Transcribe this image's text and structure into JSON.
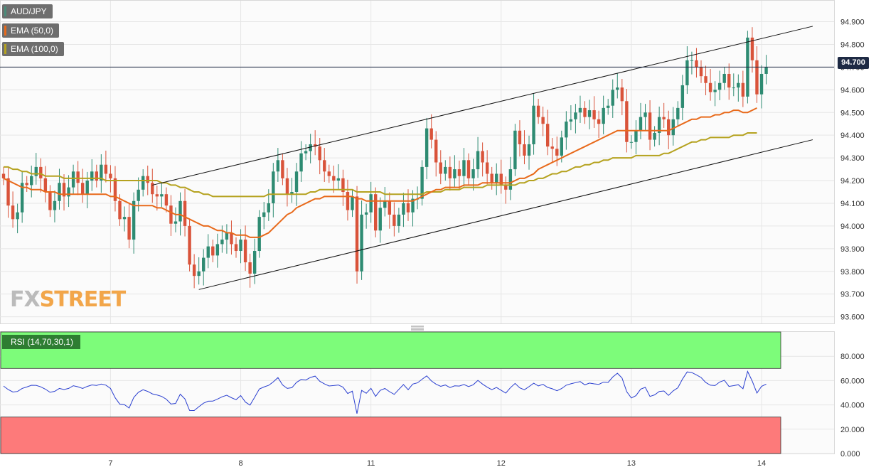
{
  "chart_data": [
    {
      "type": "candlestick",
      "legend": [
        {
          "label": "AUD/JPY",
          "color": "#4a8c7a"
        },
        {
          "label": "EMA (50,0)",
          "color": "#e8691a"
        },
        {
          "label": "EMA (100,0)",
          "color": "#b5a21f"
        }
      ],
      "ylim": [
        93.58,
        94.98
      ],
      "y_ticks": [
        "94.900",
        "94.800",
        "94.700",
        "94.600",
        "94.500",
        "94.400",
        "94.300",
        "94.200",
        "94.100",
        "94.000",
        "93.900",
        "93.800",
        "93.700",
        "93.600"
      ],
      "y_tick_values": [
        94.9,
        94.8,
        94.7,
        94.6,
        94.5,
        94.4,
        94.3,
        94.2,
        94.1,
        94.0,
        93.9,
        93.8,
        93.7,
        93.6
      ],
      "last_price": "94.700",
      "last_price_value": 94.7,
      "x_ticks": [
        "7",
        "8",
        "11",
        "12",
        "13",
        "14"
      ],
      "x_tick_index": [
        23,
        51,
        79,
        107,
        135,
        163
      ],
      "colors": {
        "up": "#2e8b72",
        "down": "#d9533a",
        "ema50": "#e8691a",
        "ema100": "#b5a21f",
        "grid": "#e6e6e6",
        "price_line": "#1e2a44"
      },
      "closes": [
        94.21,
        94.09,
        94.03,
        94.06,
        94.19,
        94.18,
        94.22,
        94.26,
        94.21,
        94.15,
        94.07,
        94.11,
        94.19,
        94.13,
        94.17,
        94.24,
        94.19,
        94.14,
        94.2,
        94.24,
        94.2,
        94.27,
        94.23,
        94.21,
        94.11,
        94.03,
        94.04,
        93.94,
        94.11,
        94.16,
        94.22,
        94.19,
        94.14,
        94.13,
        94.14,
        94.09,
        94.01,
        94.02,
        94.11,
        94.0,
        93.83,
        93.78,
        93.8,
        93.86,
        93.91,
        93.87,
        93.92,
        93.94,
        93.97,
        93.92,
        93.89,
        93.94,
        93.84,
        93.79,
        93.89,
        94.04,
        94.06,
        94.1,
        94.24,
        94.29,
        94.21,
        94.14,
        94.15,
        94.24,
        94.32,
        94.33,
        94.36,
        94.35,
        94.29,
        94.24,
        94.22,
        94.2,
        94.21,
        94.15,
        94.07,
        94.13,
        93.8,
        94.05,
        94.06,
        94.14,
        93.98,
        94.08,
        94.11,
        94.05,
        94.0,
        94.05,
        94.1,
        94.06,
        94.12,
        94.12,
        94.26,
        94.43,
        94.38,
        94.28,
        94.23,
        94.26,
        94.21,
        94.25,
        94.22,
        94.29,
        94.21,
        94.25,
        94.33,
        94.28,
        94.23,
        94.19,
        94.23,
        94.18,
        94.16,
        94.25,
        94.42,
        94.36,
        94.31,
        94.36,
        94.53,
        94.48,
        94.45,
        94.35,
        94.34,
        94.31,
        94.39,
        94.46,
        94.47,
        94.5,
        94.52,
        94.48,
        94.51,
        94.47,
        94.45,
        94.52,
        94.53,
        94.6,
        94.61,
        94.55,
        94.37,
        94.37,
        94.42,
        94.48,
        94.5,
        94.38,
        94.41,
        94.48,
        94.47,
        94.4,
        94.47,
        94.52,
        94.62,
        94.73,
        94.73,
        94.7,
        94.66,
        94.63,
        94.59,
        94.6,
        94.63,
        94.67,
        94.61,
        94.61,
        94.63,
        94.57,
        94.83,
        94.73,
        94.58,
        94.67,
        94.7
      ],
      "ema50": [
        94.21,
        94.2,
        94.19,
        94.18,
        94.17,
        94.17,
        94.16,
        94.16,
        94.16,
        94.15,
        94.15,
        94.15,
        94.14,
        94.14,
        94.14,
        94.14,
        94.14,
        94.14,
        94.14,
        94.14,
        94.14,
        94.14,
        94.14,
        94.13,
        94.13,
        94.12,
        94.11,
        94.1,
        94.09,
        94.09,
        94.09,
        94.09,
        94.09,
        94.08,
        94.08,
        94.07,
        94.06,
        94.05,
        94.05,
        94.04,
        94.03,
        94.02,
        94.01,
        94.0,
        94.0,
        93.99,
        93.98,
        93.98,
        93.97,
        93.97,
        93.96,
        93.96,
        93.96,
        93.95,
        93.95,
        93.95,
        93.96,
        93.97,
        93.99,
        94.01,
        94.03,
        94.05,
        94.06,
        94.08,
        94.09,
        94.1,
        94.11,
        94.12,
        94.12,
        94.13,
        94.13,
        94.13,
        94.13,
        94.13,
        94.13,
        94.13,
        94.12,
        94.12,
        94.11,
        94.11,
        94.11,
        94.11,
        94.11,
        94.11,
        94.11,
        94.11,
        94.11,
        94.11,
        94.11,
        94.12,
        94.13,
        94.14,
        94.15,
        94.16,
        94.16,
        94.17,
        94.17,
        94.17,
        94.17,
        94.18,
        94.18,
        94.18,
        94.18,
        94.19,
        94.19,
        94.19,
        94.19,
        94.19,
        94.19,
        94.19,
        94.2,
        94.21,
        94.21,
        94.22,
        94.23,
        94.25,
        94.26,
        94.27,
        94.28,
        94.29,
        94.3,
        94.31,
        94.32,
        94.33,
        94.34,
        94.35,
        94.36,
        94.37,
        94.38,
        94.39,
        94.4,
        94.41,
        94.42,
        94.42,
        94.42,
        94.42,
        94.42,
        94.42,
        94.42,
        94.42,
        94.42,
        94.42,
        94.42,
        94.42,
        94.43,
        94.44,
        94.45,
        94.46,
        94.47,
        94.47,
        94.48,
        94.48,
        94.48,
        94.49,
        94.49,
        94.5,
        94.5,
        94.51,
        94.51,
        94.5,
        94.5,
        94.51,
        94.52
      ],
      "ema100": [
        94.26,
        94.26,
        94.25,
        94.25,
        94.24,
        94.24,
        94.23,
        94.23,
        94.23,
        94.22,
        94.22,
        94.22,
        94.22,
        94.21,
        94.21,
        94.21,
        94.21,
        94.21,
        94.21,
        94.21,
        94.21,
        94.21,
        94.2,
        94.2,
        94.2,
        94.2,
        94.2,
        94.2,
        94.2,
        94.2,
        94.2,
        94.2,
        94.2,
        94.2,
        94.19,
        94.19,
        94.18,
        94.18,
        94.17,
        94.17,
        94.16,
        94.15,
        94.15,
        94.14,
        94.14,
        94.13,
        94.13,
        94.13,
        94.13,
        94.13,
        94.13,
        94.13,
        94.13,
        94.13,
        94.13,
        94.13,
        94.13,
        94.14,
        94.14,
        94.14,
        94.14,
        94.14,
        94.14,
        94.14,
        94.14,
        94.14,
        94.15,
        94.15,
        94.16,
        94.16,
        94.16,
        94.16,
        94.16,
        94.16,
        94.16,
        94.16,
        94.15,
        94.15,
        94.15,
        94.15,
        94.15,
        94.15,
        94.14,
        94.14,
        94.14,
        94.14,
        94.14,
        94.14,
        94.14,
        94.14,
        94.14,
        94.15,
        94.15,
        94.15,
        94.15,
        94.16,
        94.16,
        94.16,
        94.16,
        94.17,
        94.17,
        94.17,
        94.17,
        94.17,
        94.18,
        94.18,
        94.18,
        94.18,
        94.18,
        94.18,
        94.18,
        94.19,
        94.19,
        94.2,
        94.2,
        94.21,
        94.21,
        94.22,
        94.23,
        94.23,
        94.24,
        94.24,
        94.25,
        94.26,
        94.26,
        94.27,
        94.27,
        94.28,
        94.28,
        94.29,
        94.29,
        94.3,
        94.3,
        94.3,
        94.3,
        94.3,
        94.31,
        94.31,
        94.31,
        94.31,
        94.31,
        94.31,
        94.32,
        94.32,
        94.33,
        94.34,
        94.35,
        94.36,
        94.37,
        94.37,
        94.38,
        94.38,
        94.39,
        94.39,
        94.39,
        94.39,
        94.39,
        94.4,
        94.4,
        94.4,
        94.41,
        94.41,
        94.41
      ],
      "channel": {
        "upper": [
          [
            32,
            94.18
          ],
          [
            174,
            94.88
          ]
        ],
        "lower": [
          [
            42,
            93.72
          ],
          [
            174,
            94.38
          ]
        ]
      }
    },
    {
      "type": "line",
      "legend": [
        {
          "label": "RSI (14,70,30,1)",
          "color": "#2a3fd0"
        }
      ],
      "ylim": [
        0,
        100
      ],
      "y_ticks": [
        "80.000",
        "60.000",
        "40.000",
        "20.000",
        "0.000"
      ],
      "y_tick_values": [
        80,
        60,
        40,
        20,
        0
      ],
      "overbought": 70,
      "oversold": 30,
      "colors": {
        "line": "#2a3fd0",
        "overbought_zone": "#7dfc7a",
        "oversold_zone": "#fd7a7a"
      },
      "values": [
        55.52,
        52.64,
        50.59,
        51.07,
        53.55,
        54.72,
        56.13,
        56.1,
        54.88,
        52.91,
        50.37,
        51.16,
        53.56,
        52.64,
        53.58,
        55.77,
        54.93,
        53.48,
        55.19,
        56.41,
        56.01,
        57.16,
        56.27,
        53.49,
        45.84,
        40.6,
        40.23,
        37.45,
        46.09,
        50.43,
        52.48,
        51.09,
        49.04,
        48.18,
        46.96,
        44.65,
        40.7,
        41.22,
        48.84,
        44.86,
        35.42,
        35.38,
        38.53,
        41.43,
        43.06,
        43.1,
        44.81,
        46.65,
        47.98,
        45.89,
        44.24,
        47.67,
        42.31,
        39.81,
        46.32,
        53.02,
        54.76,
        56.06,
        58.91,
        62.43,
        56.41,
        53.54,
        54.16,
        58.55,
        60.95,
        60.48,
        62.56,
        63.69,
        59.48,
        57.25,
        55.53,
        55.88,
        56.37,
        54.56,
        49.38,
        51.28,
        32.78,
        51.93,
        49.61,
        53.65,
        47.03,
        51.95,
        53.49,
        50.87,
        48.67,
        52.74,
        56.7,
        52.51,
        57.11,
        58.1,
        61.09,
        63.87,
        59.71,
        57.05,
        55.28,
        56.39,
        54.28,
        55.69,
        55.47,
        56.79,
        55.07,
        56.57,
        60.2,
        57.13,
        54.54,
        52.5,
        54.34,
        51.98,
        49.69,
        54.23,
        57.65,
        54.04,
        52.44,
        55.03,
        57.83,
        55.59,
        56.91,
        54.4,
        53.29,
        51.61,
        53.44,
        56.2,
        57.36,
        58.32,
        59.2,
        56.5,
        57.95,
        57.31,
        56.88,
        58.73,
        58.5,
        62.92,
        66.03,
        62.11,
        50.89,
        45.69,
        47.63,
        53.0,
        54.46,
        46.98,
        48.25,
        51.04,
        51.48,
        47.84,
        51.6,
        54.1,
        61.2,
        67.11,
        66.58,
        64.65,
        62.54,
        58.43,
        56.17,
        55.9,
        58.82,
        60.21,
        55.19,
        55.82,
        56.61,
        53.27,
        67.56,
        59.6,
        49.75,
        55.24,
        57.14
      ]
    }
  ],
  "brand": {
    "fx": "FX",
    "street": "STREET"
  }
}
